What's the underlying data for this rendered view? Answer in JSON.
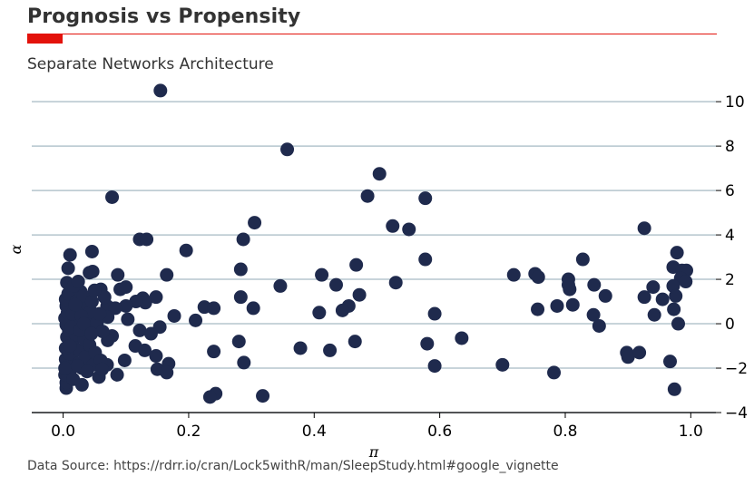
{
  "title": "Prognosis vs Propensity",
  "subtitle": "Separate Networks Architecture",
  "source": "Data Source: https://rdrr.io/cran/Lock5withR/man/SleepStudy.html#google_vignette",
  "colors": {
    "accent": "#e3120b",
    "point": "#1f2a4d",
    "grid": "#b5c5cd",
    "text": "#333333"
  },
  "chart_data": {
    "type": "scatter",
    "title": "Prognosis vs Propensity",
    "subtitle": "Separate Networks Architecture",
    "xlabel": "π",
    "ylabel": "α",
    "xlim": [
      -0.05,
      1.04
    ],
    "ylim": [
      -4.0,
      10.7
    ],
    "xticks": [
      0.0,
      0.2,
      0.4,
      0.6,
      0.8,
      1.0
    ],
    "xtick_labels": [
      "0.0",
      "0.2",
      "0.4",
      "0.6",
      "0.8",
      "1.0"
    ],
    "yticks": [
      -4,
      -2,
      0,
      2,
      4,
      6,
      8,
      10
    ],
    "ytick_labels": [
      "−4",
      "−2",
      "0",
      "2",
      "4",
      "6",
      "8",
      "10"
    ],
    "grid": "horizontal",
    "yaxis_side": "right",
    "points": [
      [
        0.155,
        10.5
      ],
      [
        0.357,
        7.85
      ],
      [
        0.504,
        6.75
      ],
      [
        0.078,
        5.7
      ],
      [
        0.485,
        5.75
      ],
      [
        0.577,
        5.65
      ],
      [
        0.525,
        4.4
      ],
      [
        0.551,
        4.25
      ],
      [
        0.305,
        4.55
      ],
      [
        0.926,
        4.3
      ],
      [
        0.122,
        3.8
      ],
      [
        0.133,
        3.8
      ],
      [
        0.287,
        3.8
      ],
      [
        0.196,
        3.3
      ],
      [
        0.046,
        3.25
      ],
      [
        0.011,
        3.1
      ],
      [
        0.978,
        3.2
      ],
      [
        0.577,
        2.9
      ],
      [
        0.828,
        2.9
      ],
      [
        0.467,
        2.65
      ],
      [
        0.972,
        2.55
      ],
      [
        0.283,
        2.45
      ],
      [
        0.008,
        2.5
      ],
      [
        0.986,
        2.4
      ],
      [
        0.993,
        2.4
      ],
      [
        0.412,
        2.2
      ],
      [
        0.718,
        2.2
      ],
      [
        0.752,
        2.25
      ],
      [
        0.757,
        2.1
      ],
      [
        0.087,
        2.2
      ],
      [
        0.042,
        2.3
      ],
      [
        0.047,
        2.35
      ],
      [
        0.165,
        2.2
      ],
      [
        0.805,
        2.0
      ],
      [
        0.984,
        2.05
      ],
      [
        0.992,
        1.9
      ],
      [
        0.53,
        1.85
      ],
      [
        0.435,
        1.75
      ],
      [
        0.346,
        1.7
      ],
      [
        0.807,
        1.55
      ],
      [
        0.805,
        1.75
      ],
      [
        0.846,
        1.75
      ],
      [
        0.94,
        1.65
      ],
      [
        0.972,
        1.7
      ],
      [
        0.926,
        1.2
      ],
      [
        0.864,
        1.25
      ],
      [
        0.955,
        1.1
      ],
      [
        0.976,
        1.25
      ],
      [
        0.02,
        1.6
      ],
      [
        0.06,
        1.55
      ],
      [
        0.091,
        1.55
      ],
      [
        0.1,
        1.65
      ],
      [
        0.148,
        1.2
      ],
      [
        0.283,
        1.2
      ],
      [
        0.472,
        1.3
      ],
      [
        0.127,
        1.15
      ],
      [
        0.131,
        0.95
      ],
      [
        0.116,
        1.0
      ],
      [
        0.1,
        0.8
      ],
      [
        0.225,
        0.75
      ],
      [
        0.24,
        0.7
      ],
      [
        0.303,
        0.7
      ],
      [
        0.455,
        0.8
      ],
      [
        0.445,
        0.6
      ],
      [
        0.408,
        0.5
      ],
      [
        0.787,
        0.8
      ],
      [
        0.812,
        0.85
      ],
      [
        0.756,
        0.65
      ],
      [
        0.973,
        0.65
      ],
      [
        0.592,
        0.45
      ],
      [
        0.845,
        0.4
      ],
      [
        0.942,
        0.4
      ],
      [
        0.07,
        0.8
      ],
      [
        0.083,
        0.7
      ],
      [
        0.071,
        0.3
      ],
      [
        0.177,
        0.35
      ],
      [
        0.211,
        0.15
      ],
      [
        0.103,
        0.2
      ],
      [
        0.154,
        -0.15
      ],
      [
        0.854,
        -0.1
      ],
      [
        0.98,
        0.0
      ],
      [
        0.122,
        -0.3
      ],
      [
        0.14,
        -0.45
      ],
      [
        0.078,
        -0.55
      ],
      [
        0.071,
        -0.75
      ],
      [
        0.28,
        -0.8
      ],
      [
        0.465,
        -0.8
      ],
      [
        0.58,
        -0.9
      ],
      [
        0.635,
        -0.65
      ],
      [
        0.115,
        -1.0
      ],
      [
        0.13,
        -1.2
      ],
      [
        0.378,
        -1.1
      ],
      [
        0.425,
        -1.2
      ],
      [
        0.24,
        -1.25
      ],
      [
        0.148,
        -1.45
      ],
      [
        0.898,
        -1.3
      ],
      [
        0.9,
        -1.5
      ],
      [
        0.918,
        -1.3
      ],
      [
        0.098,
        -1.65
      ],
      [
        0.07,
        -1.85
      ],
      [
        0.168,
        -1.8
      ],
      [
        0.288,
        -1.75
      ],
      [
        0.592,
        -1.9
      ],
      [
        0.7,
        -1.85
      ],
      [
        0.967,
        -1.7
      ],
      [
        0.15,
        -2.05
      ],
      [
        0.165,
        -2.2
      ],
      [
        0.086,
        -2.3
      ],
      [
        0.057,
        -2.4
      ],
      [
        0.782,
        -2.2
      ],
      [
        0.03,
        -2.75
      ],
      [
        0.243,
        -3.15
      ],
      [
        0.234,
        -3.3
      ],
      [
        0.318,
        -3.25
      ],
      [
        0.974,
        -2.95
      ],
      [
        0.005,
        -2.9
      ],
      [
        0.005,
        -2.65
      ],
      [
        0.003,
        -2.3
      ],
      [
        0.012,
        -2.05
      ],
      [
        0.018,
        -1.75
      ],
      [
        0.004,
        -1.6
      ],
      [
        0.01,
        -1.35
      ],
      [
        0.004,
        -1.1
      ],
      [
        0.015,
        -0.85
      ],
      [
        0.006,
        -0.6
      ],
      [
        0.009,
        -0.3
      ],
      [
        0.005,
        -0.05
      ],
      [
        0.003,
        0.25
      ],
      [
        0.007,
        0.5
      ],
      [
        0.005,
        0.8
      ],
      [
        0.004,
        1.1
      ],
      [
        0.008,
        1.35
      ],
      [
        0.006,
        1.85
      ],
      [
        0.003,
        -2.0
      ],
      [
        0.02,
        -0.5
      ],
      [
        0.022,
        0.1
      ],
      [
        0.025,
        0.6
      ],
      [
        0.021,
        1.0
      ],
      [
        0.028,
        1.45
      ],
      [
        0.026,
        -1.2
      ],
      [
        0.03,
        -2.0
      ],
      [
        0.035,
        -1.5
      ],
      [
        0.034,
        -0.7
      ],
      [
        0.036,
        0.3
      ],
      [
        0.038,
        0.9
      ],
      [
        0.032,
        1.25
      ],
      [
        0.04,
        -0.2
      ],
      [
        0.044,
        0.55
      ],
      [
        0.046,
        1.0
      ],
      [
        0.042,
        -0.95
      ],
      [
        0.048,
        -1.85
      ],
      [
        0.051,
        -1.3
      ],
      [
        0.054,
        0.05
      ],
      [
        0.058,
        0.45
      ],
      [
        0.063,
        -0.35
      ],
      [
        0.06,
        -1.65
      ],
      [
        0.062,
        -2.05
      ],
      [
        0.066,
        1.2
      ],
      [
        0.015,
        0.45
      ],
      [
        0.017,
        1.7
      ],
      [
        0.013,
        -0.15
      ],
      [
        0.016,
        -2.5
      ],
      [
        0.023,
        -1.9
      ],
      [
        0.027,
        -0.3
      ],
      [
        0.029,
        0.35
      ],
      [
        0.011,
        -1.0
      ],
      [
        0.019,
        0.85
      ],
      [
        0.038,
        -2.15
      ],
      [
        0.05,
        1.5
      ],
      [
        0.024,
        1.9
      ],
      [
        0.033,
        0.0
      ],
      [
        0.045,
        -0.45
      ]
    ]
  }
}
